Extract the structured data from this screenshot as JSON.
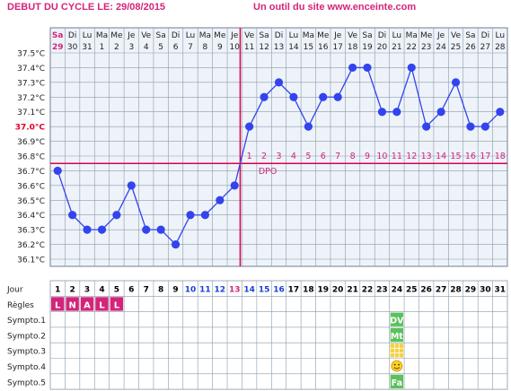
{
  "header": {
    "left": "DEBUT DU CYCLE LE: 29/08/2015",
    "right": "Un outil du site www.enceinte.com"
  },
  "chart_data": {
    "type": "line",
    "ylabel_unit": "°C",
    "y_ticks": [
      "37.5°C",
      "37.4°C",
      "37.3°C",
      "37.2°C",
      "37.1°C",
      "37.0°C",
      "36.9°C",
      "36.8°C",
      "36.7°C",
      "36.6°C",
      "36.5°C",
      "36.4°C",
      "36.3°C",
      "36.2°C",
      "36.1°C"
    ],
    "y_highlight": "37.0°C",
    "ylim": [
      36.1,
      37.5
    ],
    "weekdays": [
      "Sa",
      "Di",
      "Lu",
      "Ma",
      "Me",
      "Je",
      "Ve",
      "Sa",
      "Di",
      "Lu",
      "Ma",
      "Me",
      "Je",
      "Ve",
      "Sa",
      "Di",
      "Lu",
      "Ma",
      "Me",
      "Je",
      "Ve",
      "Sa",
      "Di",
      "Lu",
      "Ma",
      "Me",
      "Je",
      "Ve",
      "Sa",
      "Di",
      "Lu"
    ],
    "dates": [
      "29",
      "30",
      "31",
      "1",
      "2",
      "3",
      "4",
      "5",
      "6",
      "7",
      "8",
      "9",
      "10",
      "11",
      "12",
      "13",
      "14",
      "15",
      "16",
      "17",
      "18",
      "19",
      "20",
      "21",
      "22",
      "23",
      "24",
      "25",
      "26",
      "27",
      "28"
    ],
    "values": [
      36.7,
      36.4,
      36.3,
      36.3,
      36.4,
      36.6,
      36.3,
      36.3,
      36.2,
      36.4,
      36.4,
      36.5,
      36.6,
      37.0,
      37.2,
      37.3,
      37.2,
      37.0,
      37.2,
      37.2,
      37.4,
      37.4,
      37.1,
      37.1,
      37.4,
      37.0,
      37.1,
      37.3,
      37.0,
      37.0,
      37.1
    ],
    "coverline": 36.75,
    "ovulation_day_index": 12,
    "dpo_label": "DPO",
    "dpo_numbers": [
      "1",
      "2",
      "3",
      "4",
      "5",
      "6",
      "7",
      "8",
      "9",
      "10",
      "11",
      "12",
      "13",
      "14",
      "15",
      "16",
      "17",
      "18"
    ],
    "colors": {
      "line": "#3344ee",
      "marker": "#3344ee",
      "coverline": "#d8004b",
      "grid": "#8a9aaa",
      "plot_bg": "#eef3fa",
      "accent": "#d4247a"
    }
  },
  "table": {
    "rows": [
      "Jour",
      "Règles",
      "Sympto.1",
      "Sympto.2",
      "Sympto.3",
      "Sympto.4",
      "Sympto.5"
    ],
    "days": [
      "1",
      "2",
      "3",
      "4",
      "5",
      "6",
      "7",
      "8",
      "9",
      "10",
      "11",
      "12",
      "13",
      "14",
      "15",
      "16",
      "17",
      "18",
      "19",
      "20",
      "21",
      "22",
      "23",
      "24",
      "25",
      "26",
      "27",
      "28",
      "29",
      "30",
      "31"
    ],
    "day_colors": [
      "#000",
      "#000",
      "#000",
      "#000",
      "#000",
      "#000",
      "#000",
      "#000",
      "#000",
      "#1a3fd8",
      "#1a3fd8",
      "#1a3fd8",
      "#d4247a",
      "#1a3fd8",
      "#1a3fd8",
      "#1a3fd8",
      "#000",
      "#000",
      "#000",
      "#000",
      "#000",
      "#000",
      "#000",
      "#000",
      "#000",
      "#000",
      "#000",
      "#000",
      "#000",
      "#000",
      "#000"
    ],
    "regles": [
      "L",
      "N",
      "A",
      "L",
      "L"
    ],
    "symptoms": [
      {
        "row": 0,
        "day": 24,
        "text": "DV",
        "color": "#5cc15c"
      },
      {
        "row": 1,
        "day": 24,
        "text": "Mt",
        "color": "#5cc15c"
      },
      {
        "row": 2,
        "day": 24,
        "text": "",
        "color": "#f4d23c",
        "icon": "grid-icon"
      },
      {
        "row": 3,
        "day": 24,
        "text": "",
        "color": "#ffffff",
        "icon": "smiley-icon"
      },
      {
        "row": 4,
        "day": 24,
        "text": "Fa",
        "color": "#5cc15c"
      }
    ]
  }
}
